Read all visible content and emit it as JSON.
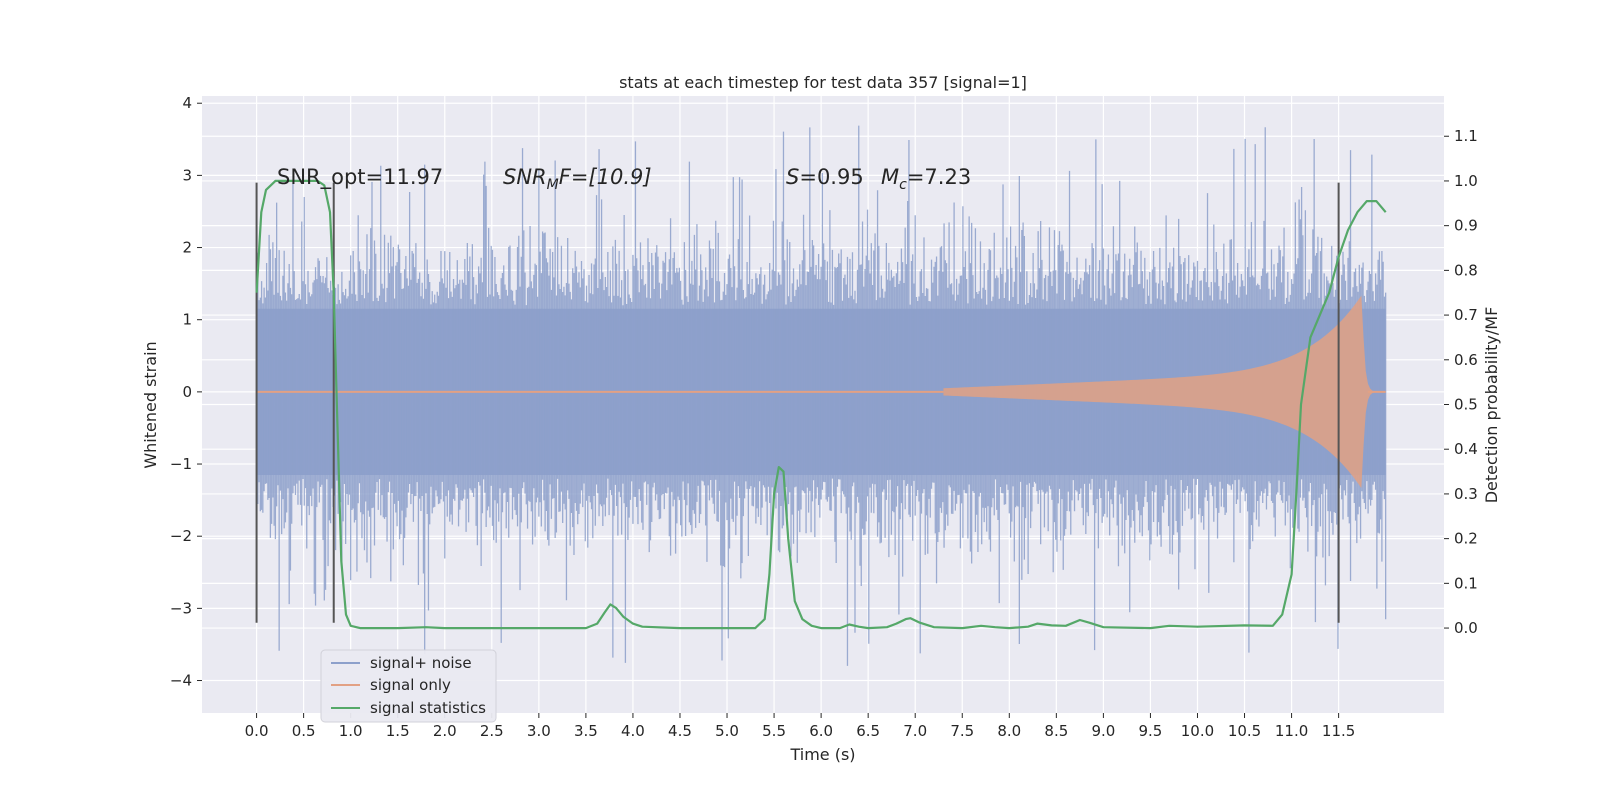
{
  "chart_data": {
    "type": "line",
    "title": "stats at each timestep for test data 357 [signal=1]",
    "xlabel": "Time (s)",
    "ylabel_left": "Whitened strain",
    "ylabel_right": "Detection probability/MF",
    "xlim": [
      -0.58,
      12.62
    ],
    "ylim_left": [
      -4.45,
      4.1
    ],
    "ylim_right": [
      -0.19,
      1.19
    ],
    "x_ticks": [
      "0.0",
      "0.5",
      "1.0",
      "1.5",
      "2.0",
      "2.5",
      "3.0",
      "3.5",
      "4.0",
      "4.5",
      "5.0",
      "5.5",
      "6.0",
      "6.5",
      "7.0",
      "7.5",
      "8.0",
      "8.5",
      "9.0",
      "9.5",
      "10.0",
      "10.5",
      "11.0",
      "11.5"
    ],
    "y_ticks_left": [
      "4",
      "3",
      "2",
      "1",
      "0",
      "−1",
      "−2",
      "−3",
      "−4"
    ],
    "y_ticks_right": [
      "1.1",
      "1.0",
      "0.9",
      "0.8",
      "0.7",
      "0.6",
      "0.5",
      "0.4",
      "0.3",
      "0.2",
      "0.1",
      "0.0"
    ],
    "grid": true,
    "legend_position": "lower-left",
    "annotations": {
      "snr_opt": "SNR_opt=11.97",
      "snr_mf_prefix": "SNR",
      "snr_mf_sub": "M",
      "snr_mf_suffix": "F=[10.9]",
      "s_letter": "S",
      "s_value": "=0.95",
      "mc_letter": "M",
      "mc_sub": "c",
      "mc_value": "=7.23"
    },
    "vertical_markers_x": [
      0.0,
      0.82,
      11.5
    ],
    "series": [
      {
        "name": "signal+ noise",
        "color": "#8da0cb",
        "x_range": [
          0.0,
          12.0
        ],
        "amplitude_p95": 1.6,
        "min": -4.1,
        "max": 3.75
      },
      {
        "name": "signal only",
        "color": "#e2a184",
        "chirp_start_x": 7.3,
        "peak_x": 11.75,
        "peak_amplitude": 1.35
      },
      {
        "name": "signal statistics",
        "color": "#55a868",
        "points": [
          [
            0.0,
            0.75
          ],
          [
            0.05,
            0.93
          ],
          [
            0.1,
            0.98
          ],
          [
            0.2,
            1.0
          ],
          [
            0.3,
            1.0
          ],
          [
            0.5,
            1.0
          ],
          [
            0.65,
            1.0
          ],
          [
            0.72,
            0.99
          ],
          [
            0.78,
            0.93
          ],
          [
            0.82,
            0.75
          ],
          [
            0.86,
            0.45
          ],
          [
            0.9,
            0.15
          ],
          [
            0.95,
            0.03
          ],
          [
            1.0,
            0.005
          ],
          [
            1.1,
            0.0
          ],
          [
            1.5,
            0.0
          ],
          [
            1.8,
            0.002
          ],
          [
            2.0,
            0.0
          ],
          [
            2.5,
            0.0
          ],
          [
            3.0,
            0.0
          ],
          [
            3.5,
            0.0
          ],
          [
            3.62,
            0.01
          ],
          [
            3.7,
            0.035
          ],
          [
            3.76,
            0.053
          ],
          [
            3.82,
            0.045
          ],
          [
            3.9,
            0.025
          ],
          [
            4.0,
            0.01
          ],
          [
            4.1,
            0.003
          ],
          [
            4.5,
            0.0
          ],
          [
            5.0,
            0.0
          ],
          [
            5.3,
            0.0
          ],
          [
            5.4,
            0.02
          ],
          [
            5.45,
            0.12
          ],
          [
            5.5,
            0.3
          ],
          [
            5.55,
            0.36
          ],
          [
            5.6,
            0.35
          ],
          [
            5.65,
            0.2
          ],
          [
            5.72,
            0.06
          ],
          [
            5.8,
            0.02
          ],
          [
            5.9,
            0.005
          ],
          [
            6.0,
            0.0
          ],
          [
            6.2,
            0.0
          ],
          [
            6.3,
            0.008
          ],
          [
            6.4,
            0.003
          ],
          [
            6.5,
            0.0
          ],
          [
            6.7,
            0.002
          ],
          [
            6.8,
            0.01
          ],
          [
            6.9,
            0.02
          ],
          [
            6.95,
            0.022
          ],
          [
            7.05,
            0.012
          ],
          [
            7.2,
            0.002
          ],
          [
            7.5,
            0.0
          ],
          [
            7.7,
            0.005
          ],
          [
            7.85,
            0.002
          ],
          [
            8.0,
            0.0
          ],
          [
            8.2,
            0.003
          ],
          [
            8.3,
            0.01
          ],
          [
            8.45,
            0.006
          ],
          [
            8.6,
            0.005
          ],
          [
            8.75,
            0.018
          ],
          [
            8.85,
            0.012
          ],
          [
            9.0,
            0.002
          ],
          [
            9.5,
            0.0
          ],
          [
            9.7,
            0.005
          ],
          [
            10.0,
            0.003
          ],
          [
            10.5,
            0.006
          ],
          [
            10.8,
            0.005
          ],
          [
            10.9,
            0.03
          ],
          [
            11.0,
            0.12
          ],
          [
            11.05,
            0.3
          ],
          [
            11.1,
            0.5
          ],
          [
            11.2,
            0.65
          ],
          [
            11.3,
            0.7
          ],
          [
            11.4,
            0.75
          ],
          [
            11.5,
            0.83
          ],
          [
            11.6,
            0.89
          ],
          [
            11.7,
            0.93
          ],
          [
            11.8,
            0.955
          ],
          [
            11.9,
            0.955
          ],
          [
            12.0,
            0.93
          ]
        ]
      }
    ]
  }
}
